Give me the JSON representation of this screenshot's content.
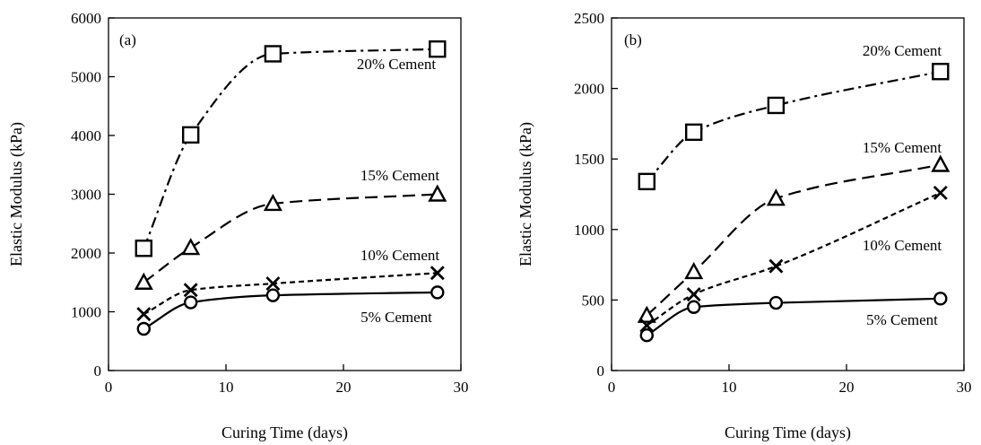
{
  "chart_data": [
    {
      "type": "line",
      "panel_label": "(a)",
      "xlabel": "Curing Time (days)",
      "ylabel": "Elastic Modulus (kPa)",
      "xlim": [
        0,
        30
      ],
      "ylim": [
        0,
        6000
      ],
      "xticks": [
        0,
        10,
        20,
        30
      ],
      "yticks": [
        0,
        1000,
        2000,
        3000,
        4000,
        5000,
        6000
      ],
      "grid": false,
      "legend": "inline labels",
      "x": [
        3,
        7,
        14,
        28
      ],
      "series": [
        {
          "name": "20% Cement",
          "marker": "square",
          "line_style": "dash-dot",
          "values": [
            2080,
            4010,
            5390,
            5470
          ]
        },
        {
          "name": "15% Cement",
          "marker": "triangle",
          "line_style": "dashed",
          "values": [
            1500,
            2090,
            2840,
            3000
          ]
        },
        {
          "name": "10% Cement",
          "marker": "x",
          "line_style": "short-dashed",
          "values": [
            960,
            1370,
            1480,
            1660
          ]
        },
        {
          "name": "5% Cement",
          "marker": "circle",
          "line_style": "solid",
          "values": [
            710,
            1160,
            1280,
            1330
          ]
        }
      ]
    },
    {
      "type": "line",
      "panel_label": "(b)",
      "xlabel": "Curing Time (days)",
      "ylabel": "Elastic Modulus (kPa)",
      "xlim": [
        0,
        30
      ],
      "ylim": [
        0,
        2500
      ],
      "xticks": [
        0,
        10,
        20,
        30
      ],
      "yticks": [
        0,
        500,
        1000,
        1500,
        2000,
        2500
      ],
      "grid": false,
      "legend": "inline labels",
      "x": [
        3,
        7,
        14,
        28
      ],
      "series": [
        {
          "name": "20% Cement",
          "marker": "square",
          "line_style": "dash-dot",
          "values": [
            1340,
            1690,
            1880,
            2120
          ]
        },
        {
          "name": "15% Cement",
          "marker": "triangle",
          "line_style": "dashed",
          "values": [
            390,
            700,
            1220,
            1460
          ]
        },
        {
          "name": "10% Cement",
          "marker": "x",
          "line_style": "short-dashed",
          "values": [
            320,
            540,
            740,
            1260
          ]
        },
        {
          "name": "5% Cement",
          "marker": "circle",
          "line_style": "solid",
          "values": [
            250,
            450,
            480,
            510
          ]
        }
      ]
    }
  ]
}
